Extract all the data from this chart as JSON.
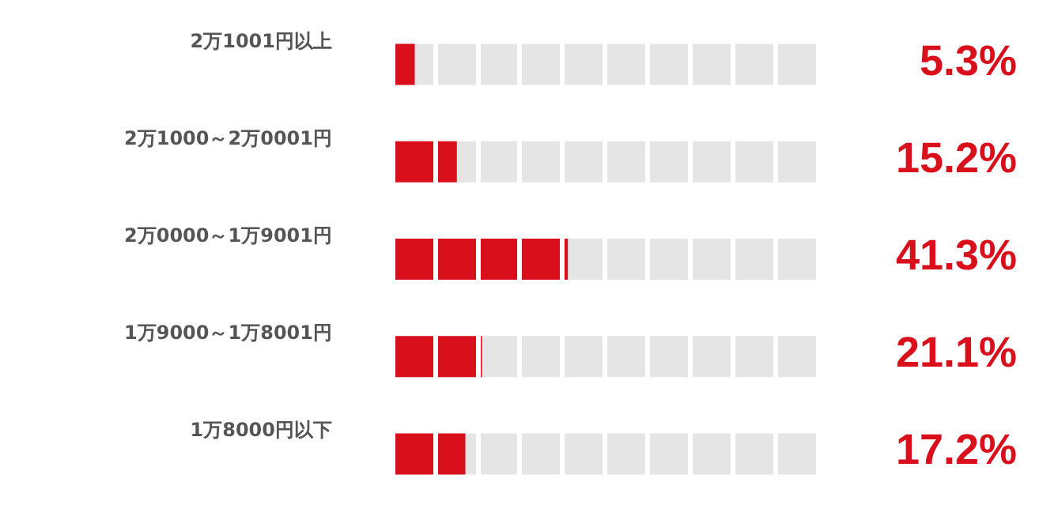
{
  "chart_data": {
    "type": "bar",
    "orientation": "horizontal",
    "categories": [
      "2万1001円以上",
      "2万1000～2万0001円",
      "2万0000～1万9001円",
      "1万9000～1万8001円",
      "1万8000円以下"
    ],
    "values": [
      5.3,
      15.2,
      41.3,
      21.1,
      17.2
    ],
    "value_labels": [
      "5.3%",
      "15.2%",
      "41.3%",
      "21.1%",
      "17.2%"
    ],
    "color": "#d9101c",
    "xlim": [
      0,
      100
    ],
    "xticks": [
      {
        "value": 0,
        "label": null
      },
      {
        "value": 10,
        "label": null
      },
      {
        "value": 20,
        "label": null
      },
      {
        "value": 30,
        "label": null
      },
      {
        "value": 40,
        "label": null
      },
      {
        "value": 50,
        "label": null
      },
      {
        "value": 60,
        "label": null
      },
      {
        "value": 70,
        "label": null
      },
      {
        "value": 80,
        "label": null
      },
      {
        "value": 90,
        "label": null
      },
      {
        "value": 100,
        "label": null
      }
    ],
    "grid": "x",
    "tick_labels": "y"
  }
}
